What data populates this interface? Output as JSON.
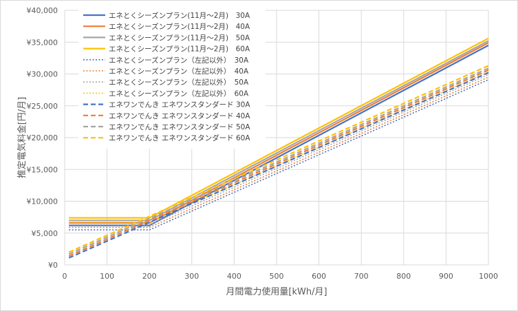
{
  "chart_data": {
    "type": "line",
    "xlabel": "月間電力使用量[kWh/月]",
    "ylabel": "推定電気料金[円/月]",
    "xlim": [
      0,
      1000
    ],
    "ylim": [
      0,
      40000
    ],
    "x_ticks": [
      "0",
      "100",
      "200",
      "300",
      "400",
      "500",
      "600",
      "700",
      "800",
      "900",
      "1000"
    ],
    "y_ticks": [
      "¥0",
      "¥5,000",
      "¥10,000",
      "¥15,000",
      "¥20,000",
      "¥25,000",
      "¥30,000",
      "¥35,000",
      "¥40,000"
    ],
    "grid": true,
    "legend_position": "top-left",
    "series": [
      {
        "name": "エネとくシーズンプラン(11月〜2月)　30A",
        "color": "#4472C4",
        "style": "solid",
        "x": [
          10,
          200,
          1000
        ],
        "y": [
          6200,
          6200,
          34500
        ]
      },
      {
        "name": "エネとくシーズンプラン(11月〜2月)　40A",
        "color": "#ED7D31",
        "style": "solid",
        "x": [
          10,
          200,
          1000
        ],
        "y": [
          6600,
          6600,
          34900
        ]
      },
      {
        "name": "エネとくシーズンプラン(11月〜2月)　50A",
        "color": "#A5A5A5",
        "style": "solid",
        "x": [
          10,
          200,
          1000
        ],
        "y": [
          7000,
          7000,
          35200
        ]
      },
      {
        "name": "エネとくシーズンプラン(11月〜2月)　60A",
        "color": "#FFC000",
        "style": "solid",
        "x": [
          10,
          200,
          1000
        ],
        "y": [
          7400,
          7400,
          35600
        ]
      },
      {
        "name": "エネとくシーズンプラン（左記以外）　30A",
        "color": "#4472C4",
        "style": "dotted",
        "x": [
          10,
          200,
          1000
        ],
        "y": [
          5500,
          5500,
          29100
        ]
      },
      {
        "name": "エネとくシーズンプラン（左記以外）　40A",
        "color": "#ED7D31",
        "style": "dotted",
        "x": [
          10,
          200,
          1000
        ],
        "y": [
          5900,
          5900,
          29500
        ]
      },
      {
        "name": "エネとくシーズンプラン（左記以外）　50A",
        "color": "#A5A5A5",
        "style": "dotted",
        "x": [
          10,
          200,
          1000
        ],
        "y": [
          6300,
          6300,
          29900
        ]
      },
      {
        "name": "エネとくシーズンプラン（左記以外）　60A",
        "color": "#FFC000",
        "style": "dotted",
        "x": [
          10,
          200,
          1000
        ],
        "y": [
          6700,
          6700,
          30300
        ]
      },
      {
        "name": "エネワンでんき エネワンスタンダード 30A",
        "color": "#4472C4",
        "style": "dashed",
        "x": [
          10,
          1000
        ],
        "y": [
          1100,
          30200
        ]
      },
      {
        "name": "エネワンでんき エネワンスタンダード 40A",
        "color": "#ED7D31",
        "style": "dashed",
        "x": [
          10,
          1000
        ],
        "y": [
          1400,
          30600
        ]
      },
      {
        "name": "エネワンでんき エネワンスタンダード 50A",
        "color": "#A5A5A5",
        "style": "dashed",
        "x": [
          10,
          1000
        ],
        "y": [
          1700,
          30900
        ]
      },
      {
        "name": "エネワンでんき エネワンスタンダード 60A",
        "color": "#FFC000",
        "style": "dashed",
        "x": [
          10,
          1000
        ],
        "y": [
          2000,
          31300
        ]
      }
    ]
  }
}
